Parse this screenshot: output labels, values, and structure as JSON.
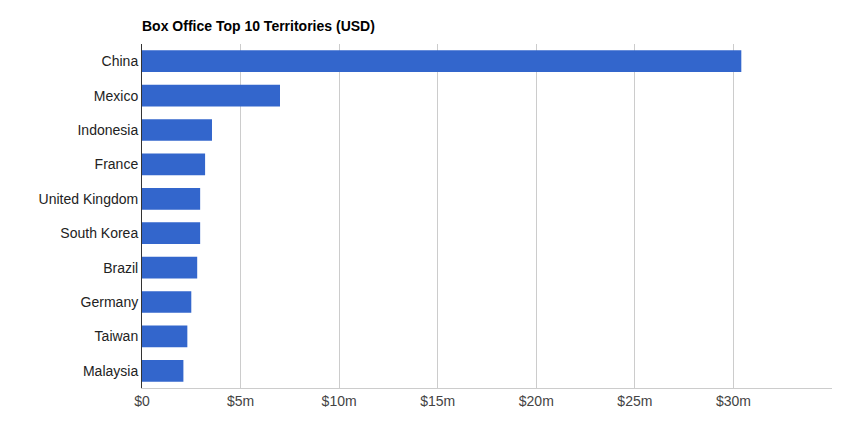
{
  "chart_data": {
    "type": "bar",
    "title": "Box Office Top 10 Territories (USD)",
    "orientation": "horizontal",
    "categories": [
      "China",
      "Mexico",
      "Indonesia",
      "France",
      "United Kingdom",
      "South Korea",
      "Brazil",
      "Germany",
      "Taiwan",
      "Malaysia"
    ],
    "values": [
      30.4,
      7.0,
      3.55,
      3.2,
      2.95,
      2.95,
      2.8,
      2.5,
      2.3,
      2.1
    ],
    "color": "#3366cc",
    "xlim": [
      0,
      35
    ],
    "xticks": [
      {
        "value": 0,
        "label": "$0"
      },
      {
        "value": 5,
        "label": "$5m"
      },
      {
        "value": 10,
        "label": "$10m"
      },
      {
        "value": 15,
        "label": "$15m"
      },
      {
        "value": 20,
        "label": "$20m"
      },
      {
        "value": 25,
        "label": "$25m"
      },
      {
        "value": 30,
        "label": "$30m"
      }
    ],
    "grid": true
  }
}
